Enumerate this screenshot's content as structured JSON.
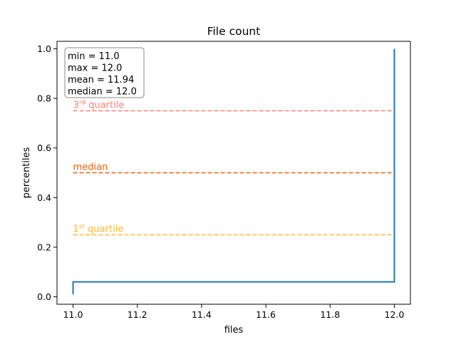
{
  "chart_data": {
    "type": "line",
    "title": "File count",
    "xlabel": "files",
    "ylabel": "percentiles",
    "xlim": [
      10.95,
      12.05
    ],
    "ylim": [
      -0.03,
      1.03
    ],
    "xticks": [
      11.0,
      11.2,
      11.4,
      11.6,
      11.8,
      12.0
    ],
    "xtick_labels": [
      "11.0",
      "11.2",
      "11.4",
      "11.6",
      "11.8",
      "12.0"
    ],
    "yticks": [
      0.0,
      0.2,
      0.4,
      0.6,
      0.8,
      1.0
    ],
    "ytick_labels": [
      "0.0",
      "0.2",
      "0.4",
      "0.6",
      "0.8",
      "1.0"
    ],
    "grid": false,
    "series": [
      {
        "color": "#1f77b4",
        "style": "step",
        "x": [
          11.0,
          11.0,
          12.0,
          12.0
        ],
        "y": [
          0.01,
          0.06,
          0.06,
          1.0
        ]
      }
    ],
    "reference_lines": [
      {
        "label_base": "3",
        "label_sup": "rd",
        "label_rest": " quartile",
        "y": 0.75,
        "color": "#fa8072",
        "x_start": 11.0,
        "x_end": 12.0
      },
      {
        "label_base": "median",
        "label_sup": "",
        "label_rest": "",
        "y": 0.5,
        "color": "#e8620a",
        "x_start": 11.0,
        "x_end": 12.0
      },
      {
        "label_base": "1",
        "label_sup": "st",
        "label_rest": " quartile",
        "y": 0.25,
        "color": "#ffb733",
        "x_start": 11.0,
        "x_end": 12.0
      }
    ],
    "stats_box": {
      "placement": "top-left",
      "lines": [
        "min = 11.0",
        "max = 12.0",
        "mean = 11.94",
        "median = 12.0"
      ]
    }
  }
}
